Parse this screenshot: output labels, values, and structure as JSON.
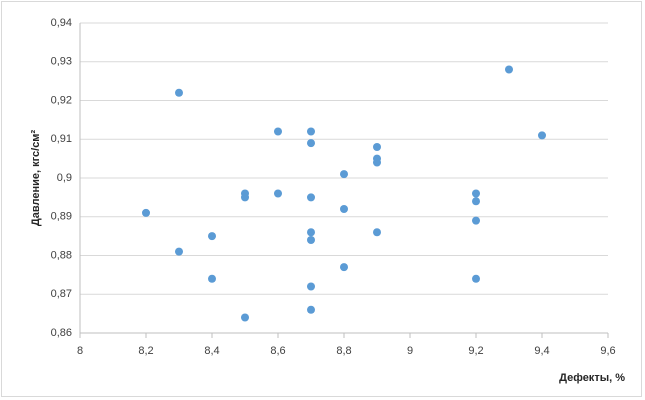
{
  "chart_data": {
    "type": "scatter",
    "x_label": "Дефекты, %",
    "y_label": "Давление, кгс/см²",
    "series": [
      {
        "color": "#5b9bd5",
        "x": [
          8.2,
          8.3,
          8.3,
          8.4,
          8.4,
          8.5,
          8.5,
          8.5,
          8.6,
          8.6,
          8.7,
          8.7,
          8.7,
          8.7,
          8.7,
          8.7,
          8.7,
          8.8,
          8.8,
          8.8,
          8.9,
          8.9,
          8.9,
          8.9,
          9.2,
          9.2,
          9.2,
          9.2,
          9.3,
          9.4
        ],
        "values": [
          0.891,
          0.922,
          0.881,
          0.885,
          0.874,
          0.896,
          0.895,
          0.864,
          0.912,
          0.896,
          0.912,
          0.909,
          0.895,
          0.886,
          0.884,
          0.872,
          0.866,
          0.901,
          0.892,
          0.877,
          0.908,
          0.905,
          0.904,
          0.886,
          0.896,
          0.894,
          0.889,
          0.874,
          0.928,
          0.911
        ]
      }
    ],
    "xlim": [
      8,
      9.6
    ],
    "xticks": [
      8,
      {
        "value": 8.2,
        "label": "8,2"
      },
      {
        "value": 8.4,
        "label": "8,4"
      },
      {
        "value": 8.6,
        "label": "8,6"
      },
      {
        "value": 8.8,
        "label": "8,8"
      },
      9,
      {
        "value": 9.2,
        "label": "9,2"
      },
      {
        "value": 9.4,
        "label": "9,4"
      },
      {
        "value": 9.6,
        "label": "9,6"
      }
    ],
    "ylim": [
      0.86,
      0.94
    ],
    "yticks": [
      {
        "value": 0.86,
        "label": "0,86"
      },
      {
        "value": 0.87,
        "label": "0,87"
      },
      {
        "value": 0.88,
        "label": "0,88"
      },
      {
        "value": 0.89,
        "label": "0,89"
      },
      {
        "value": 0.9,
        "label": "0,9"
      },
      {
        "value": 0.91,
        "label": "0,91"
      },
      {
        "value": 0.92,
        "label": "0,92"
      },
      {
        "value": 0.93,
        "label": "0,93"
      },
      {
        "value": 0.94,
        "label": "0,94"
      }
    ],
    "grid": true
  }
}
